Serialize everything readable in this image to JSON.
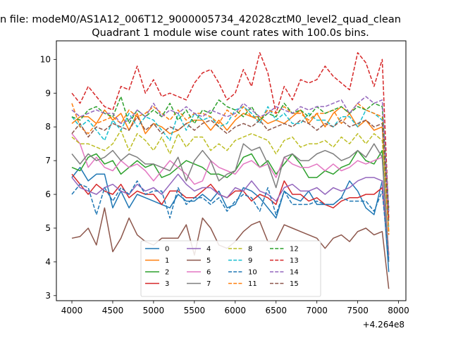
{
  "suptitle": "n file: modeM0/AS1A12_006T12_9000005734_42028cztM0_level2_quad_clean",
  "chart_data": {
    "type": "line",
    "title": "Quadrant 1 module wise count rates with 100.0s bins.",
    "xlabel": "",
    "ylabel": "",
    "x_offset_label": "+4.264e8",
    "xlim": [
      3810,
      8090
    ],
    "ylim": [
      2.85,
      10.55
    ],
    "xticks": [
      4000,
      4500,
      5000,
      5500,
      6000,
      6500,
      7000,
      7500,
      8000
    ],
    "yticks": [
      3,
      4,
      5,
      6,
      7,
      8,
      9,
      10
    ],
    "grid": false,
    "legend_position": "lower center",
    "x": [
      4000,
      4100,
      4200,
      4300,
      4400,
      4500,
      4600,
      4700,
      4800,
      4900,
      5000,
      5100,
      5200,
      5300,
      5400,
      5500,
      5600,
      5700,
      5800,
      5900,
      6000,
      6100,
      6200,
      6300,
      6400,
      6500,
      6600,
      6700,
      6800,
      6900,
      7000,
      7100,
      7200,
      7300,
      7400,
      7500,
      7600,
      7700,
      7800,
      7880
    ],
    "series": [
      {
        "name": "0",
        "color": "#1f77b4",
        "style": "solid",
        "values": [
          6.5,
          6.8,
          6.4,
          6.6,
          6.6,
          5.6,
          6.1,
          5.6,
          6.0,
          5.9,
          5.8,
          5.7,
          5.6,
          6.0,
          5.8,
          5.8,
          6.0,
          5.8,
          6.1,
          5.6,
          5.7,
          6.2,
          6.1,
          5.9,
          5.6,
          5.3,
          6.1,
          5.9,
          5.8,
          6.1,
          5.7,
          5.7,
          5.7,
          5.9,
          6.4,
          6.1,
          5.6,
          5.4,
          6.4,
          3.7
        ]
      },
      {
        "name": "1",
        "color": "#ff7f0e",
        "style": "solid",
        "values": [
          8.1,
          8.3,
          8.3,
          8.1,
          8.5,
          8.2,
          8.4,
          7.9,
          8.4,
          7.8,
          8.1,
          8.0,
          7.8,
          7.9,
          8.1,
          8.2,
          8.2,
          7.9,
          8.2,
          7.9,
          8.2,
          8.4,
          8.3,
          8.3,
          8.1,
          8.2,
          8.1,
          8.3,
          8.5,
          8.1,
          8.4,
          8.0,
          8.4,
          8.6,
          8.4,
          8.0,
          8.2,
          7.9,
          8.0,
          4.9
        ]
      },
      {
        "name": "2",
        "color": "#2ca02c",
        "style": "solid",
        "values": [
          6.8,
          6.7,
          7.1,
          7.2,
          6.9,
          7.0,
          6.6,
          6.8,
          7.0,
          6.8,
          6.9,
          6.5,
          6.6,
          6.8,
          7.0,
          6.9,
          6.8,
          6.6,
          6.6,
          6.5,
          6.7,
          7.1,
          7.2,
          6.8,
          7.0,
          6.6,
          6.9,
          7.2,
          6.9,
          6.5,
          6.5,
          6.7,
          6.6,
          6.8,
          6.9,
          7.3,
          7.0,
          6.9,
          7.3,
          4.2
        ]
      },
      {
        "name": "3",
        "color": "#d62728",
        "style": "solid",
        "values": [
          6.6,
          6.3,
          6.0,
          6.3,
          6.1,
          6.0,
          6.3,
          5.9,
          6.1,
          6.0,
          6.0,
          5.7,
          6.1,
          6.1,
          5.9,
          5.9,
          6.1,
          6.3,
          6.0,
          5.9,
          6.1,
          6.1,
          5.8,
          6.0,
          5.9,
          5.7,
          6.4,
          6.0,
          6.0,
          5.8,
          5.9,
          5.7,
          5.6,
          5.8,
          5.9,
          5.9,
          6.0,
          6.0,
          6.2,
          4.2
        ]
      },
      {
        "name": "4",
        "color": "#9467bd",
        "style": "solid",
        "values": [
          6.5,
          6.2,
          6.1,
          6.0,
          6.2,
          6.3,
          6.1,
          6.0,
          6.3,
          6.1,
          6.2,
          6.0,
          6.3,
          6.6,
          6.3,
          6.1,
          6.2,
          6.2,
          6.0,
          5.9,
          6.2,
          6.1,
          6.4,
          6.1,
          6.0,
          5.8,
          6.2,
          6.3,
          6.1,
          6.1,
          6.2,
          6.0,
          6.2,
          6.1,
          6.2,
          6.4,
          6.5,
          6.5,
          6.4,
          4.1
        ]
      },
      {
        "name": "5",
        "color": "#8c564b",
        "style": "solid",
        "values": [
          4.7,
          4.75,
          5.0,
          4.5,
          5.6,
          4.3,
          4.7,
          5.3,
          4.8,
          4.6,
          4.5,
          4.7,
          4.7,
          4.7,
          5.1,
          4.2,
          5.3,
          5.0,
          4.5,
          4.4,
          4.6,
          4.9,
          5.1,
          5.2,
          4.6,
          4.6,
          5.1,
          5.0,
          4.9,
          4.8,
          4.7,
          4.4,
          4.7,
          4.8,
          4.6,
          4.9,
          5.0,
          4.8,
          4.9,
          3.2
        ]
      },
      {
        "name": "6",
        "color": "#e377c2",
        "style": "solid",
        "values": [
          7.8,
          7.5,
          6.8,
          7.1,
          6.8,
          6.7,
          7.0,
          6.8,
          6.9,
          6.7,
          6.4,
          6.7,
          7.0,
          6.8,
          6.6,
          6.3,
          6.4,
          7.0,
          6.8,
          6.7,
          6.6,
          6.9,
          7.0,
          6.8,
          6.9,
          6.5,
          7.1,
          6.9,
          6.8,
          6.8,
          6.9,
          6.7,
          6.9,
          6.7,
          6.8,
          7.0,
          6.9,
          7.0,
          7.1,
          4.2
        ]
      },
      {
        "name": "7",
        "color": "#7f7f7f",
        "style": "solid",
        "values": [
          7.2,
          6.9,
          7.2,
          7.0,
          7.1,
          7.3,
          7.0,
          7.2,
          7.1,
          6.9,
          6.9,
          6.8,
          6.7,
          7.1,
          6.4,
          7.0,
          7.3,
          7.0,
          6.4,
          6.6,
          6.7,
          7.5,
          7.3,
          7.4,
          6.9,
          6.2,
          7.1,
          7.2,
          7.0,
          7.0,
          7.2,
          7.3,
          7.2,
          7.0,
          7.1,
          7.3,
          7.1,
          7.5,
          7.1,
          4.0
        ]
      },
      {
        "name": "8",
        "color": "#bcbd22",
        "style": "dashed",
        "values": [
          7.7,
          7.5,
          7.5,
          7.4,
          7.3,
          7.5,
          7.9,
          7.3,
          7.8,
          7.6,
          7.3,
          7.7,
          7.2,
          7.8,
          7.4,
          7.7,
          7.7,
          7.3,
          7.5,
          7.3,
          7.6,
          7.7,
          7.8,
          7.7,
          7.6,
          7.2,
          7.6,
          7.7,
          7.4,
          7.5,
          7.5,
          7.6,
          7.4,
          7.7,
          7.5,
          7.8,
          7.5,
          7.8,
          7.6,
          4.9
        ]
      },
      {
        "name": "9",
        "color": "#17becf",
        "style": "dashed",
        "values": [
          8.3,
          8.0,
          8.2,
          7.9,
          7.6,
          8.2,
          7.9,
          8.4,
          8.0,
          8.3,
          8.2,
          7.9,
          7.6,
          8.4,
          7.9,
          8.4,
          8.2,
          8.3,
          8.0,
          8.1,
          8.5,
          8.6,
          8.4,
          8.1,
          8.6,
          8.2,
          8.4,
          8.1,
          8.1,
          8.4,
          8.2,
          8.2,
          8.0,
          8.3,
          8.3,
          8.0,
          8.5,
          8.4,
          8.2,
          5.0
        ]
      },
      {
        "name": "10",
        "color": "#1f77b4",
        "style": "dashed",
        "values": [
          6.0,
          6.3,
          6.2,
          5.4,
          6.2,
          5.8,
          6.2,
          6.0,
          6.4,
          6.0,
          6.1,
          6.1,
          5.3,
          6.2,
          5.7,
          5.9,
          5.9,
          5.7,
          5.9,
          5.5,
          5.8,
          6.0,
          5.9,
          5.5,
          6.2,
          5.4,
          6.1,
          5.7,
          5.7,
          5.7,
          5.8,
          5.7,
          5.7,
          5.9,
          5.8,
          5.8,
          5.8,
          5.5,
          6.1,
          4.0
        ]
      },
      {
        "name": "11",
        "color": "#ff7f0e",
        "style": "dashed",
        "values": [
          8.7,
          8.0,
          7.8,
          8.1,
          8.2,
          8.3,
          8.1,
          8.5,
          8.3,
          8.4,
          8.6,
          8.4,
          8.2,
          8.5,
          8.2,
          8.4,
          8.4,
          8.3,
          8.1,
          8.5,
          8.3,
          8.6,
          8.3,
          8.2,
          8.5,
          8.4,
          8.6,
          8.4,
          8.4,
          8.2,
          8.4,
          8.4,
          8.5,
          8.1,
          8.4,
          8.7,
          8.5,
          8.4,
          8.3,
          4.8
        ]
      },
      {
        "name": "12",
        "color": "#2ca02c",
        "style": "dashed",
        "values": [
          8.3,
          8.2,
          8.5,
          8.6,
          8.4,
          8.3,
          8.9,
          8.1,
          8.5,
          8.3,
          8.5,
          8.3,
          8.7,
          8.2,
          8.5,
          8.1,
          8.5,
          8.4,
          8.8,
          8.6,
          8.5,
          8.3,
          8.6,
          8.2,
          8.4,
          8.3,
          8.7,
          8.4,
          8.5,
          8.3,
          8.6,
          8.4,
          8.5,
          8.6,
          8.4,
          8.6,
          8.5,
          8.7,
          8.6,
          5.6
        ]
      },
      {
        "name": "13",
        "color": "#d62728",
        "style": "dashed",
        "values": [
          9.0,
          8.7,
          9.2,
          8.9,
          8.6,
          8.5,
          9.2,
          9.1,
          9.8,
          9.0,
          9.4,
          8.9,
          9.0,
          8.9,
          8.8,
          9.3,
          9.6,
          9.7,
          9.3,
          8.8,
          9.0,
          9.7,
          9.2,
          10.2,
          9.6,
          8.4,
          9.2,
          8.8,
          9.4,
          9.3,
          9.4,
          9.8,
          9.5,
          9.3,
          9.1,
          10.2,
          9.9,
          9.2,
          10.0,
          5.3
        ]
      },
      {
        "name": "14",
        "color": "#9467bd",
        "style": "dashed",
        "values": [
          8.5,
          8.3,
          8.4,
          8.5,
          8.4,
          8.4,
          8.1,
          8.2,
          8.5,
          8.3,
          8.7,
          8.3,
          8.5,
          8.4,
          8.6,
          8.4,
          8.3,
          8.5,
          8.4,
          8.3,
          8.4,
          8.7,
          8.5,
          8.3,
          8.4,
          8.6,
          8.5,
          8.4,
          8.6,
          8.5,
          8.6,
          8.6,
          8.7,
          8.8,
          8.4,
          8.7,
          8.9,
          8.7,
          8.8,
          5.5
        ]
      },
      {
        "name": "15",
        "color": "#8c564b",
        "style": "dashed",
        "values": [
          7.8,
          8.1,
          7.7,
          8.0,
          7.9,
          8.1,
          8.0,
          7.9,
          8.3,
          7.9,
          8.1,
          7.8,
          8.0,
          7.9,
          8.1,
          7.9,
          8.1,
          8.2,
          8.0,
          7.8,
          8.0,
          8.1,
          8.0,
          8.2,
          7.9,
          8.0,
          8.1,
          8.0,
          8.2,
          8.1,
          7.9,
          8.1,
          8.0,
          8.2,
          8.0,
          8.1,
          8.2,
          8.0,
          8.1,
          5.2
        ]
      }
    ]
  }
}
